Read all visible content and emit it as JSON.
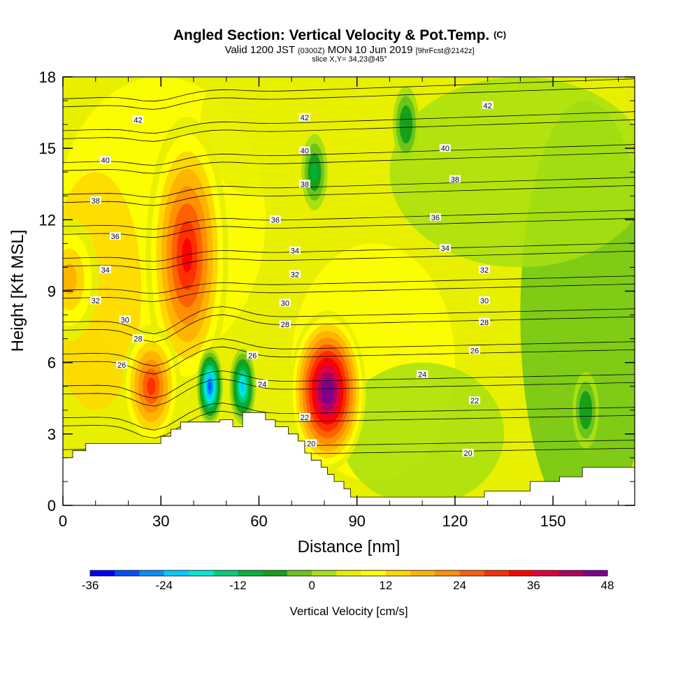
{
  "title": "Angled Section: Vertical Velocity & Pot.Temp.",
  "title_suffix": "(C)",
  "subtitle_a": "Valid 1200 JST",
  "subtitle_b": "(0300Z)",
  "subtitle_c": "MON 10 Jun 2019",
  "subtitle_d": "[9hrFcst@2142z]",
  "slice_note": "slice X,Y= 34,23@45°",
  "chart_data": {
    "type": "heatmap",
    "xlabel": "Distance [nm]",
    "ylabel": "Height [Kft MSL]",
    "xlim": [
      0,
      175
    ],
    "ylim": [
      0,
      18
    ],
    "x_ticks": [
      0,
      30,
      60,
      90,
      120,
      150
    ],
    "x_tick_labels": [
      "0",
      "30",
      "60",
      "90",
      "120",
      "150"
    ],
    "y_ticks": [
      0,
      3,
      6,
      9,
      12,
      15,
      18
    ],
    "y_tick_labels": [
      "0",
      "3",
      "6",
      "9",
      "12",
      "15",
      "18"
    ],
    "colorbar": {
      "title": "Vertical Velocity [cm/s]",
      "min": -36,
      "max": 48,
      "step": 4,
      "tick_values": [
        -36,
        -24,
        -12,
        0,
        12,
        24,
        36,
        48
      ],
      "tick_labels": [
        "-36",
        "-24",
        "-12",
        "0",
        "12",
        "24",
        "36",
        "48"
      ],
      "colors": [
        "#0000ff",
        "#0050ff",
        "#0090ff",
        "#00ccff",
        "#00e8d8",
        "#00d07c",
        "#00b23c",
        "#18a018",
        "#6cc41a",
        "#a8e010",
        "#e8f000",
        "#ffff00",
        "#ffd700",
        "#ffb400",
        "#ff9000",
        "#ff6000",
        "#ff3000",
        "#ff0000",
        "#e0003c",
        "#b00060",
        "#80008c"
      ]
    },
    "vertical_velocity_features": [
      {
        "label": "updraft",
        "x": 38,
        "y": 10.5,
        "value_cms": 34
      },
      {
        "label": "updraft",
        "x": 81,
        "y": 4.8,
        "value_cms": 48
      },
      {
        "label": "updraft",
        "x": 27,
        "y": 5.0,
        "value_cms": 28
      },
      {
        "label": "updraft",
        "x": 2,
        "y": 9.5,
        "value_cms": 18
      },
      {
        "label": "downdraft",
        "x": 45,
        "y": 5.0,
        "value_cms": -30
      },
      {
        "label": "downdraft",
        "x": 55,
        "y": 5.0,
        "value_cms": -22
      },
      {
        "label": "downdraft",
        "x": 77,
        "y": 14.0,
        "value_cms": -10
      },
      {
        "label": "downdraft",
        "x": 105,
        "y": 16.0,
        "value_cms": -8
      },
      {
        "label": "downdraft",
        "x": 160,
        "y": 4.0,
        "value_cms": -8
      }
    ],
    "theta_labels": [
      {
        "text": "42",
        "x": 23,
        "y": 16.2
      },
      {
        "text": "42",
        "x": 74,
        "y": 16.3
      },
      {
        "text": "42",
        "x": 130,
        "y": 16.8
      },
      {
        "text": "40",
        "x": 13,
        "y": 14.5
      },
      {
        "text": "40",
        "x": 74,
        "y": 14.9
      },
      {
        "text": "40",
        "x": 117,
        "y": 15.0
      },
      {
        "text": "38",
        "x": 10,
        "y": 12.8
      },
      {
        "text": "38",
        "x": 74,
        "y": 13.5
      },
      {
        "text": "38",
        "x": 120,
        "y": 13.7
      },
      {
        "text": "36",
        "x": 16,
        "y": 11.3
      },
      {
        "text": "36",
        "x": 65,
        "y": 12.0
      },
      {
        "text": "36",
        "x": 114,
        "y": 12.1
      },
      {
        "text": "34",
        "x": 13,
        "y": 9.9
      },
      {
        "text": "34",
        "x": 71,
        "y": 10.7
      },
      {
        "text": "34",
        "x": 117,
        "y": 10.8
      },
      {
        "text": "32",
        "x": 10,
        "y": 8.6
      },
      {
        "text": "32",
        "x": 71,
        "y": 9.7
      },
      {
        "text": "32",
        "x": 129,
        "y": 9.9
      },
      {
        "text": "30",
        "x": 19,
        "y": 7.8
      },
      {
        "text": "30",
        "x": 68,
        "y": 8.5
      },
      {
        "text": "30",
        "x": 129,
        "y": 8.6
      },
      {
        "text": "28",
        "x": 23,
        "y": 7.0
      },
      {
        "text": "28",
        "x": 68,
        "y": 7.6
      },
      {
        "text": "28",
        "x": 129,
        "y": 7.7
      },
      {
        "text": "26",
        "x": 18,
        "y": 5.9
      },
      {
        "text": "26",
        "x": 58,
        "y": 6.3
      },
      {
        "text": "26",
        "x": 126,
        "y": 6.5
      },
      {
        "text": "24",
        "x": 61,
        "y": 5.1
      },
      {
        "text": "24",
        "x": 110,
        "y": 5.5
      },
      {
        "text": "22",
        "x": 74,
        "y": 3.7
      },
      {
        "text": "22",
        "x": 126,
        "y": 4.4
      },
      {
        "text": "20",
        "x": 76,
        "y": 2.6
      },
      {
        "text": "20",
        "x": 124,
        "y": 2.2
      }
    ],
    "terrain_top": [
      [
        0,
        2.0
      ],
      [
        3,
        2.0
      ],
      [
        3,
        2.3
      ],
      [
        7,
        2.3
      ],
      [
        7,
        2.6
      ],
      [
        30,
        2.6
      ],
      [
        30,
        2.9
      ],
      [
        33,
        2.9
      ],
      [
        33,
        3.2
      ],
      [
        36,
        3.2
      ],
      [
        36,
        3.5
      ],
      [
        48,
        3.5
      ],
      [
        48,
        3.6
      ],
      [
        52,
        3.6
      ],
      [
        52,
        3.3
      ],
      [
        55,
        3.3
      ],
      [
        55,
        3.9
      ],
      [
        62,
        3.9
      ],
      [
        62,
        3.6
      ],
      [
        65,
        3.6
      ],
      [
        65,
        3.3
      ],
      [
        69,
        3.3
      ],
      [
        69,
        3.0
      ],
      [
        72,
        3.0
      ],
      [
        72,
        2.7
      ],
      [
        74,
        2.7
      ],
      [
        74,
        2.2
      ],
      [
        76,
        2.2
      ],
      [
        76,
        1.9
      ],
      [
        79,
        1.9
      ],
      [
        79,
        1.6
      ],
      [
        81,
        1.6
      ],
      [
        81,
        1.3
      ],
      [
        83,
        1.3
      ],
      [
        83,
        1.0
      ],
      [
        86,
        1.0
      ],
      [
        86,
        0.7
      ],
      [
        88,
        0.7
      ],
      [
        88,
        0.35
      ],
      [
        129,
        0.35
      ],
      [
        129,
        0.6
      ],
      [
        143,
        0.6
      ],
      [
        143,
        1.0
      ],
      [
        152,
        1.0
      ],
      [
        152,
        1.2
      ],
      [
        159,
        1.2
      ],
      [
        159,
        1.6
      ],
      [
        175,
        1.6
      ]
    ]
  }
}
